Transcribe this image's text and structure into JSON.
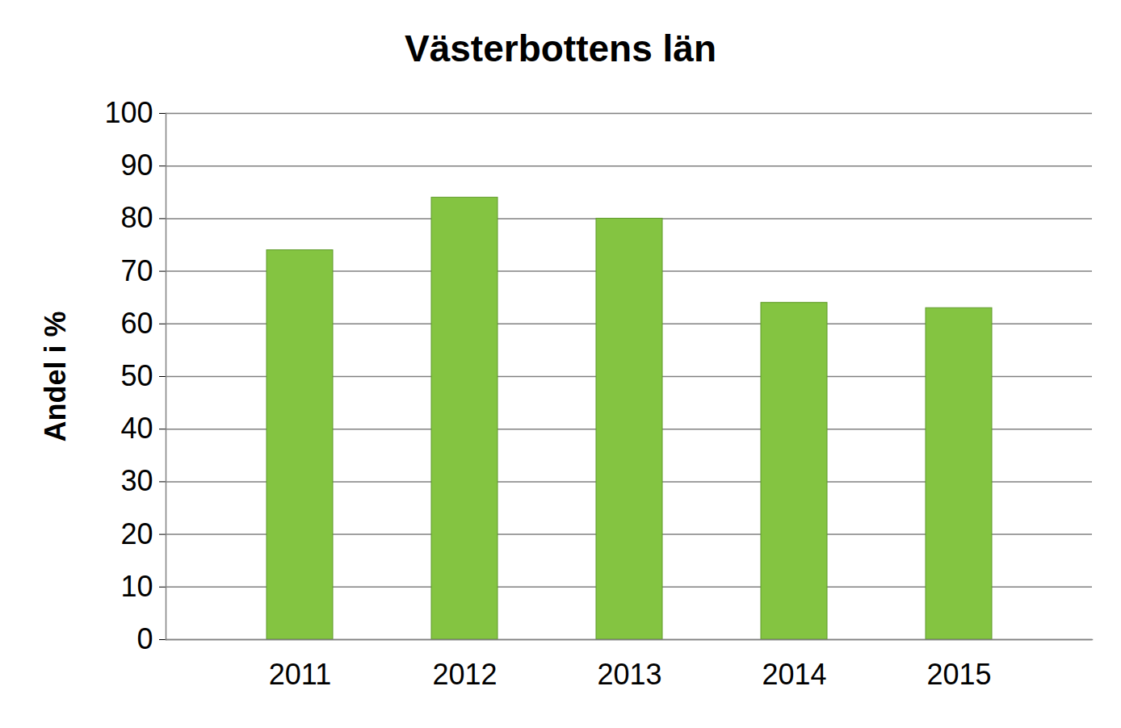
{
  "chart_data": {
    "type": "bar",
    "title": "Västerbottens län",
    "y_label": "Andel i %",
    "categories": [
      "2011",
      "2012",
      "2013",
      "2014",
      "2015"
    ],
    "values": [
      74,
      84,
      80,
      64,
      63
    ],
    "color": "#84c441",
    "ylim": [
      0,
      100
    ],
    "yticks": [
      0,
      10,
      20,
      30,
      40,
      50,
      60,
      70,
      80,
      90,
      100
    ],
    "grid": true
  }
}
